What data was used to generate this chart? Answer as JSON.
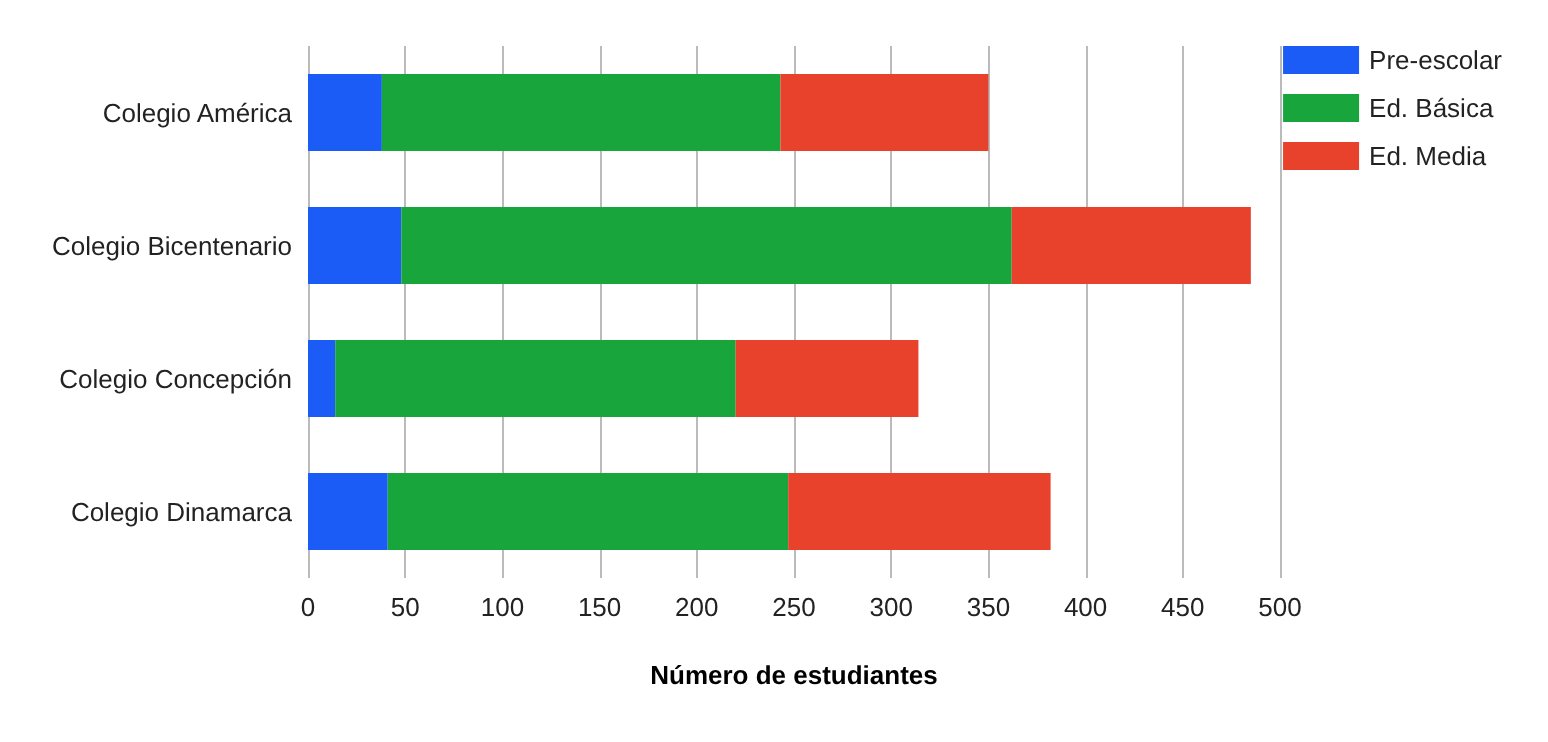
{
  "chart_data": {
    "type": "bar",
    "orientation": "horizontal",
    "stacked": true,
    "xlabel": "Número de estudiantes",
    "categories": [
      "Colegio América",
      "Colegio Bicentenario",
      "Colegio Concepción",
      "Colegio Dinamarca"
    ],
    "series": [
      {
        "name": "Pre-escolar",
        "color": "#1a5cf5",
        "values": [
          38,
          48,
          14,
          41
        ]
      },
      {
        "name": "Ed. Básica",
        "color": "#18a53c",
        "values": [
          205,
          314,
          206,
          206
        ]
      },
      {
        "name": "Ed. Media",
        "color": "#e8412c",
        "values": [
          107,
          123,
          94,
          135
        ]
      }
    ],
    "xlim": [
      0,
      500
    ],
    "xticks": [
      0,
      50,
      100,
      150,
      200,
      250,
      300,
      350,
      400,
      450,
      500
    ],
    "grid": "x",
    "legend": "top right"
  }
}
